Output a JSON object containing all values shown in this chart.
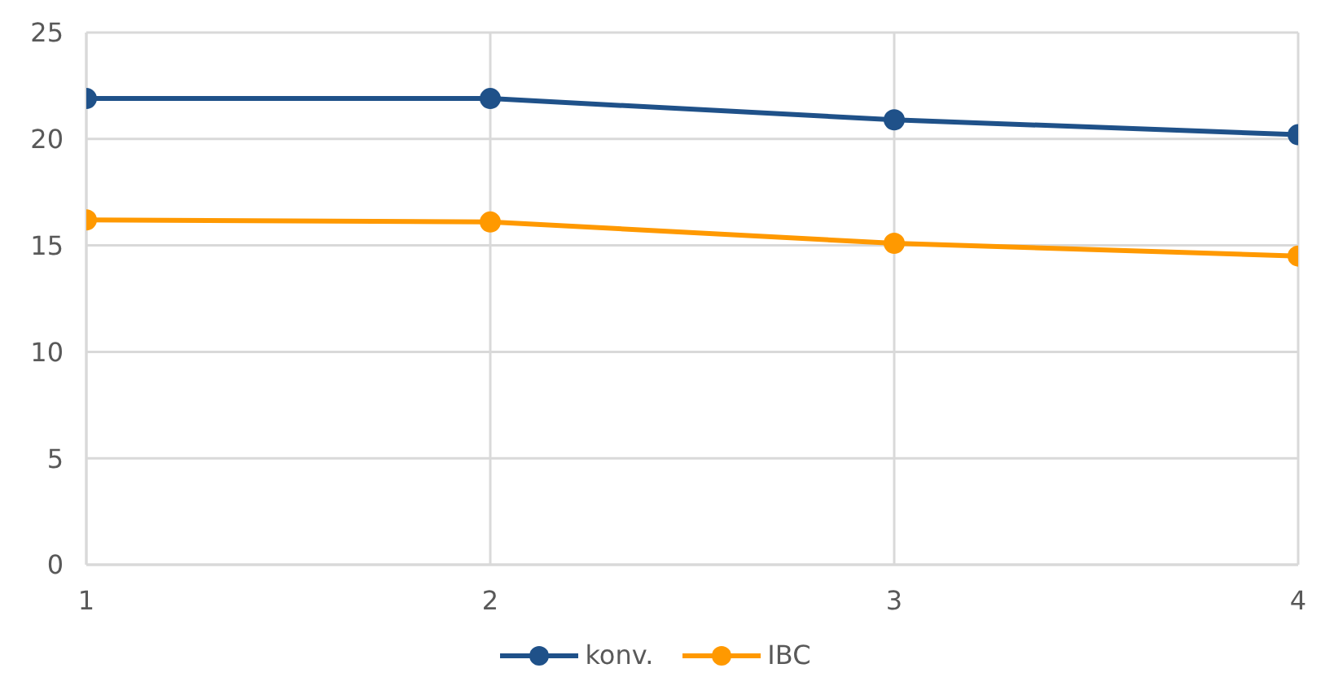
{
  "chart_data": {
    "type": "line",
    "x": [
      1,
      2,
      3,
      4
    ],
    "xlim": [
      1,
      4
    ],
    "xticks": [
      1,
      2,
      3,
      4
    ],
    "ylim": [
      0,
      25
    ],
    "yticks": [
      0,
      5,
      10,
      15,
      20,
      25
    ],
    "grid": true,
    "legend": "bottom",
    "marker": "circle",
    "line_style": "solid",
    "series": [
      {
        "name": "konv.",
        "color": "#1f5189",
        "values": [
          21.9,
          21.9,
          20.9,
          20.2
        ]
      },
      {
        "name": "IBC",
        "color": "#ff9900",
        "values": [
          16.2,
          16.1,
          15.1,
          14.5
        ]
      }
    ]
  }
}
